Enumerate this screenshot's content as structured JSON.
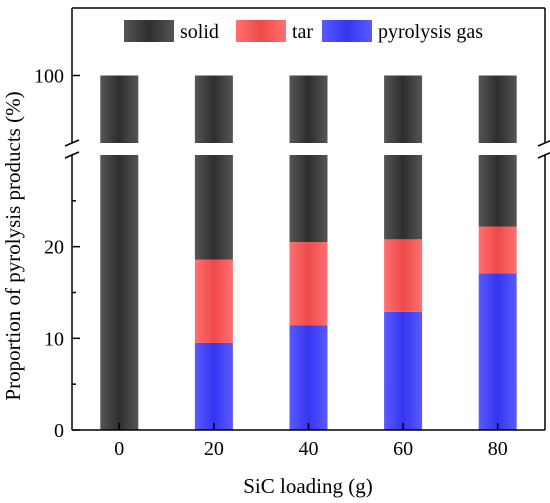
{
  "chart_data": {
    "type": "bar",
    "stacked": true,
    "broken_y_axis": true,
    "xlabel": "SiC loading (g)",
    "ylabel": "Proportion of pyrolysis products (%)",
    "categories": [
      "0",
      "20",
      "40",
      "60",
      "80"
    ],
    "series": [
      {
        "name": "pyrolysis gas",
        "color": "#3b3bf5",
        "values": [
          0,
          9.5,
          11.4,
          12.9,
          17.1
        ]
      },
      {
        "name": "tar",
        "color": "#f25555",
        "values": [
          0,
          9.1,
          9.1,
          7.9,
          5.1
        ]
      },
      {
        "name": "solid",
        "color": "#3a3a3a",
        "values": [
          100,
          81.4,
          79.5,
          79.2,
          77.8
        ]
      }
    ],
    "lower_ylim": [
      0,
      30
    ],
    "upper_ylim": [
      95,
      105
    ],
    "y_ticks_lower": [
      "0",
      "10",
      "20"
    ],
    "y_ticks_upper": [
      "100"
    ],
    "legend_placement": "top",
    "grid": false
  }
}
